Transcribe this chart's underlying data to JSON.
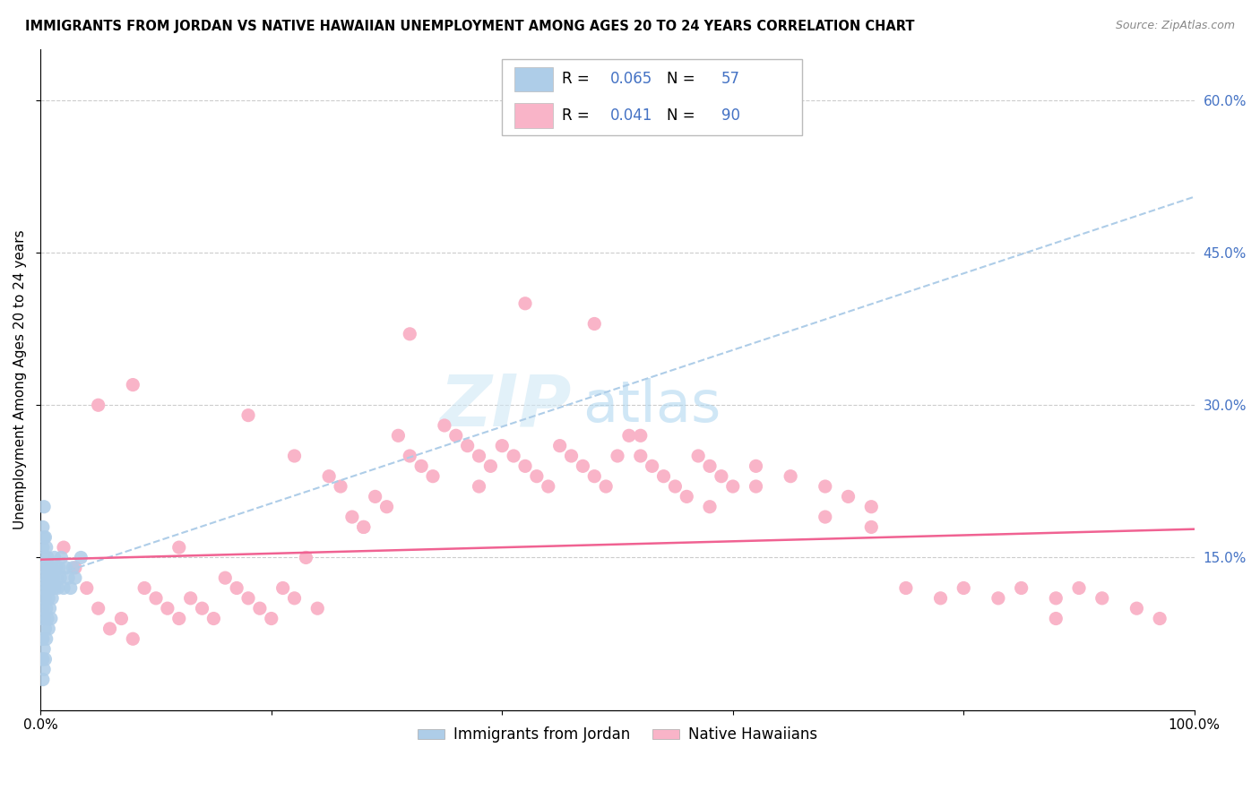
{
  "title": "IMMIGRANTS FROM JORDAN VS NATIVE HAWAIIAN UNEMPLOYMENT AMONG AGES 20 TO 24 YEARS CORRELATION CHART",
  "source": "Source: ZipAtlas.com",
  "ylabel": "Unemployment Among Ages 20 to 24 years",
  "xlim": [
    0,
    1.0
  ],
  "ylim": [
    0,
    0.65
  ],
  "xticklabels": [
    "0.0%",
    "",
    "",
    "",
    "",
    "100.0%"
  ],
  "yticklabels_right": [
    "15.0%",
    "30.0%",
    "45.0%",
    "60.0%"
  ],
  "yticks_right": [
    0.15,
    0.3,
    0.45,
    0.6
  ],
  "blue_R": "0.065",
  "blue_N": "57",
  "pink_R": "0.041",
  "pink_N": "90",
  "blue_scatter_color": "#aecde8",
  "pink_scatter_color": "#f9b4c8",
  "trendline_blue_color": "#aecde8",
  "trendline_pink_color": "#f06292",
  "right_axis_color": "#4472c4",
  "watermark_zip": "ZIP",
  "watermark_atlas": "atlas",
  "blue_trend_x0": 0.0,
  "blue_trend_y0": 0.128,
  "blue_trend_x1": 1.0,
  "blue_trend_y1": 0.505,
  "pink_trend_x0": 0.0,
  "pink_trend_y0": 0.148,
  "pink_trend_x1": 1.0,
  "pink_trend_y1": 0.178,
  "blue_points_x": [
    0.001,
    0.001,
    0.001,
    0.001,
    0.001,
    0.002,
    0.002,
    0.002,
    0.002,
    0.002,
    0.002,
    0.002,
    0.002,
    0.003,
    0.003,
    0.003,
    0.003,
    0.003,
    0.003,
    0.003,
    0.004,
    0.004,
    0.004,
    0.004,
    0.004,
    0.005,
    0.005,
    0.005,
    0.005,
    0.006,
    0.006,
    0.006,
    0.007,
    0.007,
    0.007,
    0.008,
    0.008,
    0.009,
    0.009,
    0.01,
    0.01,
    0.011,
    0.012,
    0.012,
    0.013,
    0.014,
    0.015,
    0.016,
    0.017,
    0.018,
    0.02,
    0.022,
    0.024,
    0.026,
    0.028,
    0.03,
    0.035
  ],
  "blue_points_y": [
    0.05,
    0.07,
    0.09,
    0.11,
    0.13,
    0.03,
    0.05,
    0.07,
    0.1,
    0.12,
    0.14,
    0.16,
    0.18,
    0.04,
    0.06,
    0.09,
    0.12,
    0.15,
    0.17,
    0.2,
    0.05,
    0.08,
    0.11,
    0.14,
    0.17,
    0.07,
    0.1,
    0.13,
    0.16,
    0.09,
    0.12,
    0.15,
    0.08,
    0.11,
    0.14,
    0.1,
    0.13,
    0.09,
    0.12,
    0.11,
    0.14,
    0.13,
    0.12,
    0.15,
    0.14,
    0.13,
    0.12,
    0.14,
    0.13,
    0.15,
    0.12,
    0.14,
    0.13,
    0.12,
    0.14,
    0.13,
    0.15
  ],
  "pink_points_x": [
    0.02,
    0.03,
    0.04,
    0.05,
    0.06,
    0.07,
    0.08,
    0.09,
    0.1,
    0.11,
    0.12,
    0.13,
    0.14,
    0.15,
    0.16,
    0.17,
    0.18,
    0.19,
    0.2,
    0.21,
    0.22,
    0.23,
    0.24,
    0.25,
    0.26,
    0.27,
    0.28,
    0.29,
    0.3,
    0.31,
    0.32,
    0.33,
    0.34,
    0.35,
    0.36,
    0.37,
    0.38,
    0.39,
    0.4,
    0.41,
    0.42,
    0.43,
    0.44,
    0.45,
    0.46,
    0.47,
    0.48,
    0.49,
    0.5,
    0.51,
    0.52,
    0.53,
    0.54,
    0.55,
    0.56,
    0.57,
    0.58,
    0.59,
    0.6,
    0.62,
    0.65,
    0.68,
    0.7,
    0.72,
    0.75,
    0.78,
    0.8,
    0.83,
    0.85,
    0.88,
    0.9,
    0.92,
    0.95,
    0.97,
    0.05,
    0.08,
    0.12,
    0.18,
    0.22,
    0.28,
    0.32,
    0.38,
    0.42,
    0.48,
    0.52,
    0.58,
    0.62,
    0.68,
    0.72,
    0.88
  ],
  "pink_points_y": [
    0.16,
    0.14,
    0.12,
    0.1,
    0.08,
    0.09,
    0.07,
    0.12,
    0.11,
    0.1,
    0.09,
    0.11,
    0.1,
    0.09,
    0.13,
    0.12,
    0.11,
    0.1,
    0.09,
    0.12,
    0.11,
    0.15,
    0.1,
    0.23,
    0.22,
    0.19,
    0.18,
    0.21,
    0.2,
    0.27,
    0.25,
    0.24,
    0.23,
    0.28,
    0.27,
    0.26,
    0.25,
    0.24,
    0.26,
    0.25,
    0.24,
    0.23,
    0.22,
    0.26,
    0.25,
    0.24,
    0.23,
    0.22,
    0.25,
    0.27,
    0.25,
    0.24,
    0.23,
    0.22,
    0.21,
    0.25,
    0.24,
    0.23,
    0.22,
    0.24,
    0.23,
    0.22,
    0.21,
    0.2,
    0.12,
    0.11,
    0.12,
    0.11,
    0.12,
    0.11,
    0.12,
    0.11,
    0.1,
    0.09,
    0.3,
    0.32,
    0.16,
    0.29,
    0.25,
    0.18,
    0.37,
    0.22,
    0.4,
    0.38,
    0.27,
    0.2,
    0.22,
    0.19,
    0.18,
    0.09
  ]
}
